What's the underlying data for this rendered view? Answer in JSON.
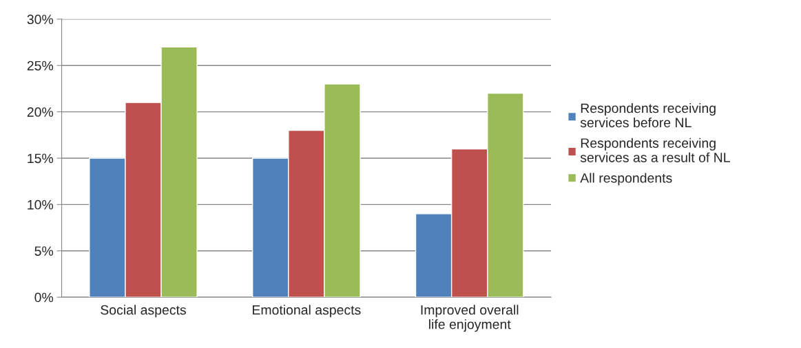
{
  "chart_data": {
    "type": "bar",
    "categories": [
      "Social aspects",
      "Emotional aspects",
      "Improved overall\nlife enjoyment"
    ],
    "series": [
      {
        "name": "Respondents receiving\nservices before NL",
        "color": "#4f81bd",
        "values": [
          15,
          15,
          9
        ]
      },
      {
        "name": "Respondents receiving\nservices as a result of NL",
        "color": "#c0504d",
        "values": [
          21,
          18,
          16
        ]
      },
      {
        "name": "All respondents",
        "color": "#9bbb59",
        "values": [
          27,
          23,
          22
        ]
      }
    ],
    "ylim": [
      0,
      30
    ],
    "yticks": [
      {
        "value": 0,
        "label": "0%"
      },
      {
        "value": 5,
        "label": "5%"
      },
      {
        "value": 10,
        "label": "10%"
      },
      {
        "value": 15,
        "label": "15%"
      },
      {
        "value": 20,
        "label": "20%"
      },
      {
        "value": 25,
        "label": "25%"
      },
      {
        "value": 30,
        "label": "30%"
      }
    ],
    "grid": "y",
    "legend": "right"
  }
}
